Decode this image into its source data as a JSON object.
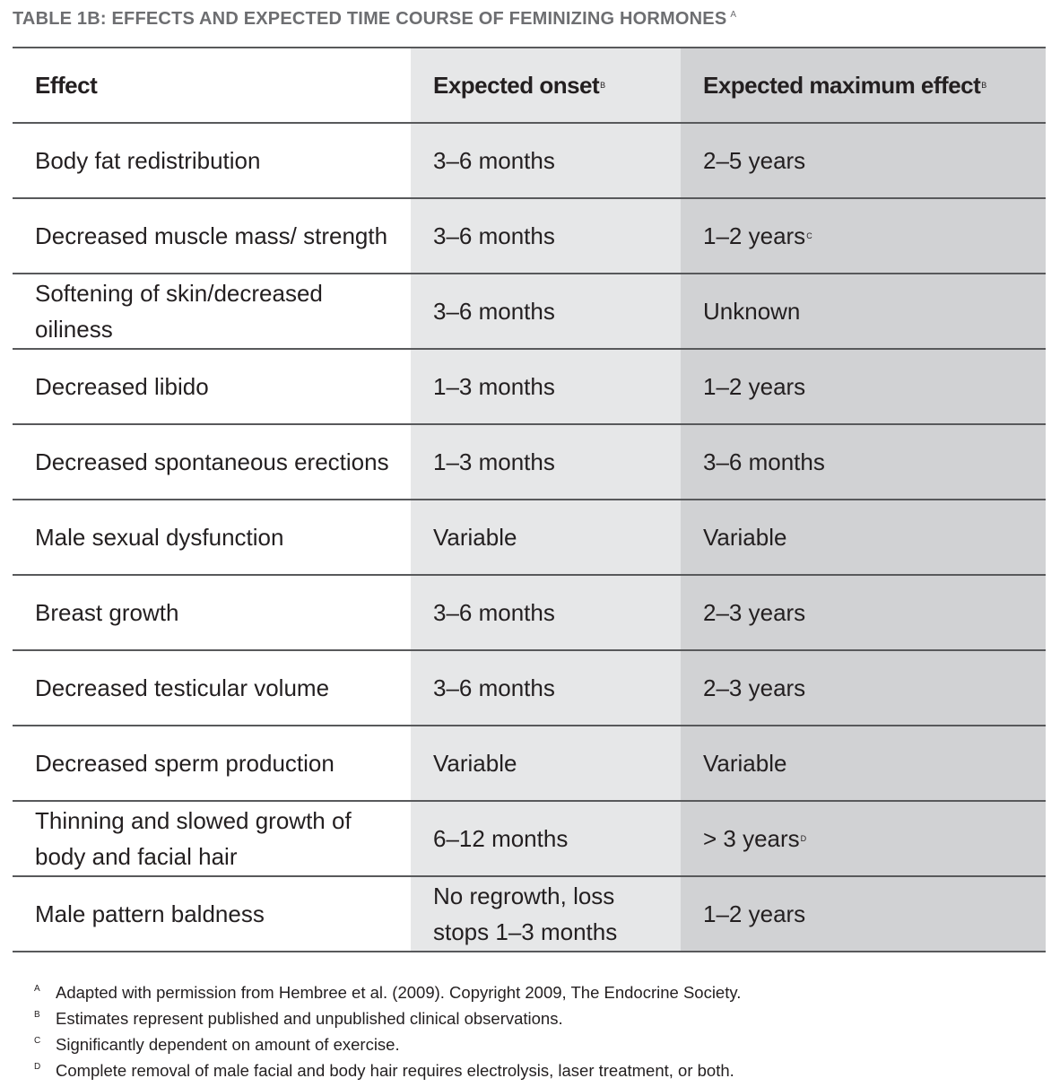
{
  "title": {
    "text": "TABLE 1B:  EFFECTS AND EXPECTED TIME COURSE OF FEMINIZING HORMONES",
    "sup": "A"
  },
  "colors": {
    "col_onset_bg": "#e6e7e8",
    "col_max_bg": "#d1d2d4",
    "rule": "#58595b",
    "title": "#6d6e71"
  },
  "headers": [
    {
      "text": "Effect",
      "sup": ""
    },
    {
      "text": "Expected onset",
      "sup": "B"
    },
    {
      "text": "Expected maximum effect",
      "sup": "B"
    }
  ],
  "rows": [
    [
      {
        "text": "Body fat redistribution",
        "sup": ""
      },
      {
        "text": "3–6 months",
        "sup": ""
      },
      {
        "text": "2–5 years",
        "sup": ""
      }
    ],
    [
      {
        "text": "Decreased muscle mass/ strength",
        "sup": ""
      },
      {
        "text": "3–6 months",
        "sup": ""
      },
      {
        "text": "1–2 years",
        "sup": "C"
      }
    ],
    [
      {
        "text": "Softening of skin/decreased oiliness",
        "sup": ""
      },
      {
        "text": "3–6 months",
        "sup": ""
      },
      {
        "text": "Unknown",
        "sup": ""
      }
    ],
    [
      {
        "text": "Decreased libido",
        "sup": ""
      },
      {
        "text": "1–3 months",
        "sup": ""
      },
      {
        "text": "1–2 years",
        "sup": ""
      }
    ],
    [
      {
        "text": "Decreased spontaneous erections",
        "sup": ""
      },
      {
        "text": "1–3 months",
        "sup": ""
      },
      {
        "text": "3–6 months",
        "sup": ""
      }
    ],
    [
      {
        "text": "Male sexual dysfunction",
        "sup": ""
      },
      {
        "text": "Variable",
        "sup": ""
      },
      {
        "text": "Variable",
        "sup": ""
      }
    ],
    [
      {
        "text": "Breast growth",
        "sup": ""
      },
      {
        "text": "3–6 months",
        "sup": ""
      },
      {
        "text": "2–3 years",
        "sup": ""
      }
    ],
    [
      {
        "text": "Decreased testicular volume",
        "sup": ""
      },
      {
        "text": "3–6 months",
        "sup": ""
      },
      {
        "text": "2–3 years",
        "sup": ""
      }
    ],
    [
      {
        "text": "Decreased sperm production",
        "sup": ""
      },
      {
        "text": "Variable",
        "sup": ""
      },
      {
        "text": "Variable",
        "sup": ""
      }
    ],
    [
      {
        "text": "Thinning and slowed growth of body and facial hair",
        "sup": ""
      },
      {
        "text": "6–12 months",
        "sup": ""
      },
      {
        "text": "> 3 years",
        "sup": "D"
      }
    ],
    [
      {
        "text": "Male pattern baldness",
        "sup": ""
      },
      {
        "text": "No regrowth, loss stops 1–3 months",
        "sup": ""
      },
      {
        "text": "1–2 years",
        "sup": ""
      }
    ]
  ],
  "footnotes": [
    {
      "mark": "A",
      "text": "Adapted with permission from Hembree et al. (2009). Copyright 2009, The Endocrine Society."
    },
    {
      "mark": "B",
      "text": "Estimates represent published and unpublished clinical observations."
    },
    {
      "mark": "C",
      "text": "Significantly dependent on amount of exercise."
    },
    {
      "mark": "D",
      "text": "Complete removal of male facial and body hair requires electrolysis, laser treatment, or both."
    }
  ]
}
